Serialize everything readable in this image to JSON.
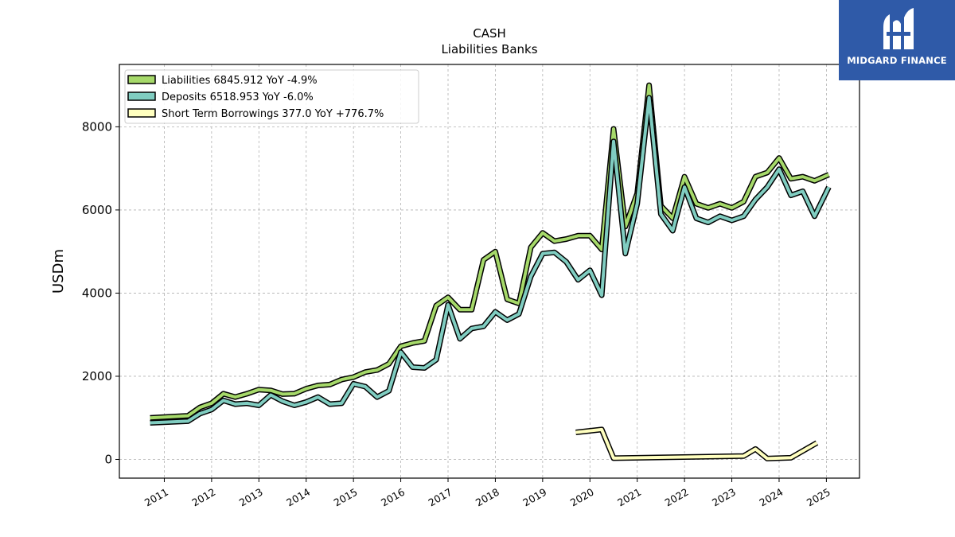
{
  "chart_data": {
    "type": "line",
    "title": "CASH",
    "subtitle": "Liabilities Banks",
    "xlabel": "",
    "ylabel": "USDm",
    "xlim": [
      2010.05,
      2025.7
    ],
    "ylim": [
      -450,
      9500
    ],
    "x_ticks": [
      2011,
      2012,
      2013,
      2014,
      2015,
      2016,
      2017,
      2018,
      2019,
      2020,
      2021,
      2022,
      2023,
      2024,
      2025
    ],
    "y_ticks": [
      0,
      2000,
      4000,
      6000,
      8000
    ],
    "grid": true,
    "legend_position": "top-left",
    "series": [
      {
        "name": "Liabilities  6845.912 YoY -4.9%",
        "color": "#a6d96a",
        "x": [
          2010.7,
          2011.5,
          2011.75,
          2012.0,
          2012.25,
          2012.5,
          2012.75,
          2013.0,
          2013.25,
          2013.5,
          2013.75,
          2014.0,
          2014.25,
          2014.5,
          2014.75,
          2015.0,
          2015.25,
          2015.5,
          2015.75,
          2016.0,
          2016.25,
          2016.5,
          2016.75,
          2017.0,
          2017.25,
          2017.5,
          2017.75,
          2018.0,
          2018.25,
          2018.5,
          2018.75,
          2019.0,
          2019.25,
          2019.5,
          2019.75,
          2020.0,
          2020.25,
          2020.5,
          2020.75,
          2021.0,
          2021.25,
          2021.5,
          2021.75,
          2022.0,
          2022.25,
          2022.5,
          2022.75,
          2023.0,
          2023.25,
          2023.5,
          2023.75,
          2024.0,
          2024.25,
          2024.5,
          2024.75,
          2025.05
        ],
        "y": [
          1000,
          1050,
          1250,
          1350,
          1580,
          1500,
          1580,
          1680,
          1660,
          1570,
          1580,
          1700,
          1780,
          1800,
          1920,
          1980,
          2100,
          2150,
          2300,
          2720,
          2800,
          2850,
          3700,
          3900,
          3600,
          3600,
          4800,
          5000,
          3850,
          3750,
          5100,
          5450,
          5250,
          5300,
          5380,
          5380,
          5050,
          7950,
          5600,
          6400,
          9000,
          6100,
          5800,
          6800,
          6150,
          6050,
          6150,
          6050,
          6200,
          6800,
          6900,
          7250,
          6750,
          6800,
          6700,
          6850
        ]
      },
      {
        "name": "Deposits  6518.953 YoY -6.0%",
        "color": "#80cdc1",
        "x": [
          2010.7,
          2011.5,
          2011.75,
          2012.0,
          2012.25,
          2012.5,
          2012.75,
          2013.0,
          2013.25,
          2013.5,
          2013.75,
          2014.0,
          2014.25,
          2014.5,
          2014.75,
          2015.0,
          2015.25,
          2015.5,
          2015.75,
          2016.0,
          2016.25,
          2016.5,
          2016.75,
          2017.0,
          2017.25,
          2017.5,
          2017.75,
          2018.0,
          2018.25,
          2018.5,
          2018.75,
          2019.0,
          2019.25,
          2019.5,
          2019.75,
          2020.0,
          2020.25,
          2020.5,
          2020.75,
          2021.0,
          2021.25,
          2021.5,
          2021.75,
          2022.0,
          2022.25,
          2022.5,
          2022.75,
          2023.0,
          2023.25,
          2023.5,
          2023.75,
          2024.0,
          2024.25,
          2024.5,
          2024.75,
          2025.05
        ],
        "y": [
          880,
          920,
          1100,
          1200,
          1420,
          1330,
          1350,
          1300,
          1550,
          1400,
          1300,
          1380,
          1500,
          1330,
          1350,
          1820,
          1750,
          1500,
          1650,
          2580,
          2220,
          2200,
          2400,
          3720,
          2900,
          3150,
          3200,
          3550,
          3350,
          3500,
          4400,
          4950,
          4980,
          4750,
          4320,
          4550,
          3950,
          7650,
          4950,
          6150,
          8700,
          5900,
          5500,
          6550,
          5800,
          5700,
          5850,
          5750,
          5850,
          6250,
          6550,
          6980,
          6350,
          6450,
          5850,
          6550
        ]
      },
      {
        "name": "Short Term Borrowings  377.0 YoY +776.7%",
        "color": "#ffffbf",
        "x": [
          2019.7,
          2020.25,
          2020.5,
          2023.25,
          2023.5,
          2023.75,
          2024.25,
          2024.8
        ],
        "y": [
          650,
          720,
          30,
          80,
          250,
          20,
          40,
          400
        ]
      }
    ]
  },
  "logo": {
    "text": "MIDGARD FINANCE"
  }
}
